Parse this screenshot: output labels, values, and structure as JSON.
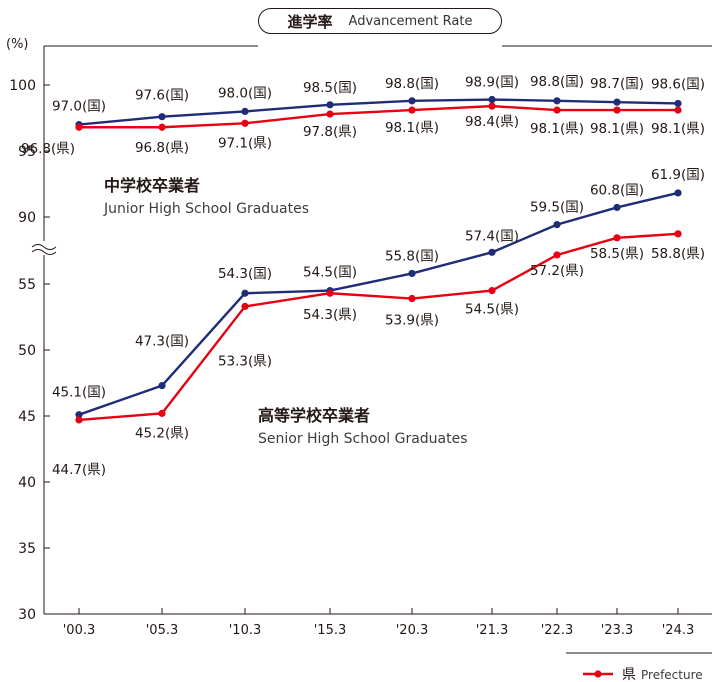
{
  "title": {
    "jp": "進学率",
    "en": "Advancement Rate"
  },
  "y_unit": "(%)",
  "legend": {
    "prefecture_symbol": "県",
    "prefecture_label": "Prefecture"
  },
  "groups": {
    "junior": {
      "jp": "中学校卒業者",
      "en": "Junior High School Graduates"
    },
    "senior": {
      "jp": "高等学校卒業者",
      "en": "Senior High School Graduates"
    }
  },
  "colors": {
    "national": "#1f2c77",
    "prefecture": "#e60012"
  },
  "chart_data": {
    "type": "line",
    "categories": [
      "'00.3",
      "'05.3",
      "'10.3",
      "'15.3",
      "'20.3",
      "'21.3",
      "'22.3",
      "'23.3",
      "'24.3"
    ],
    "y_ticks": [
      30,
      35,
      40,
      45,
      50,
      55,
      90,
      95,
      100
    ],
    "axis_break": [
      55,
      90
    ],
    "ylim": [
      30,
      100
    ],
    "grid": false,
    "series": [
      {
        "group": "junior",
        "key": "national",
        "values": [
          97.0,
          97.6,
          98.0,
          98.5,
          98.8,
          98.9,
          98.8,
          98.7,
          98.6
        ],
        "labels": [
          "97.0(国)",
          "97.6(国)",
          "98.0(国)",
          "98.5(国)",
          "98.8(国)",
          "98.9(国)",
          "98.8(国)",
          "98.7(国)",
          "98.6(国)"
        ]
      },
      {
        "group": "junior",
        "key": "prefecture",
        "values": [
          96.8,
          96.8,
          97.1,
          97.8,
          98.1,
          98.4,
          98.1,
          98.1,
          98.1
        ],
        "labels": [
          "96.8(県)",
          "96.8(県)",
          "97.1(県)",
          "97.8(県)",
          "98.1(県)",
          "98.4(県)",
          "98.1(県)",
          "98.1(県)",
          "98.1(県)"
        ]
      },
      {
        "group": "senior",
        "key": "national",
        "values": [
          45.1,
          47.3,
          54.3,
          54.5,
          55.8,
          57.4,
          59.5,
          60.8,
          61.9
        ],
        "labels": [
          "45.1(国)",
          "47.3(国)",
          "54.3(国)",
          "54.5(国)",
          "55.8(国)",
          "57.4(国)",
          "59.5(国)",
          "60.8(国)",
          "61.9(国)"
        ]
      },
      {
        "group": "senior",
        "key": "prefecture",
        "values": [
          44.7,
          45.2,
          53.3,
          54.3,
          53.9,
          54.5,
          57.2,
          58.5,
          58.8
        ],
        "labels": [
          "44.7(県)",
          "45.2(県)",
          "53.3(県)",
          "54.3(県)",
          "53.9(県)",
          "54.5(県)",
          "57.2(県)",
          "58.5(県)",
          "58.8(県)"
        ]
      }
    ]
  }
}
